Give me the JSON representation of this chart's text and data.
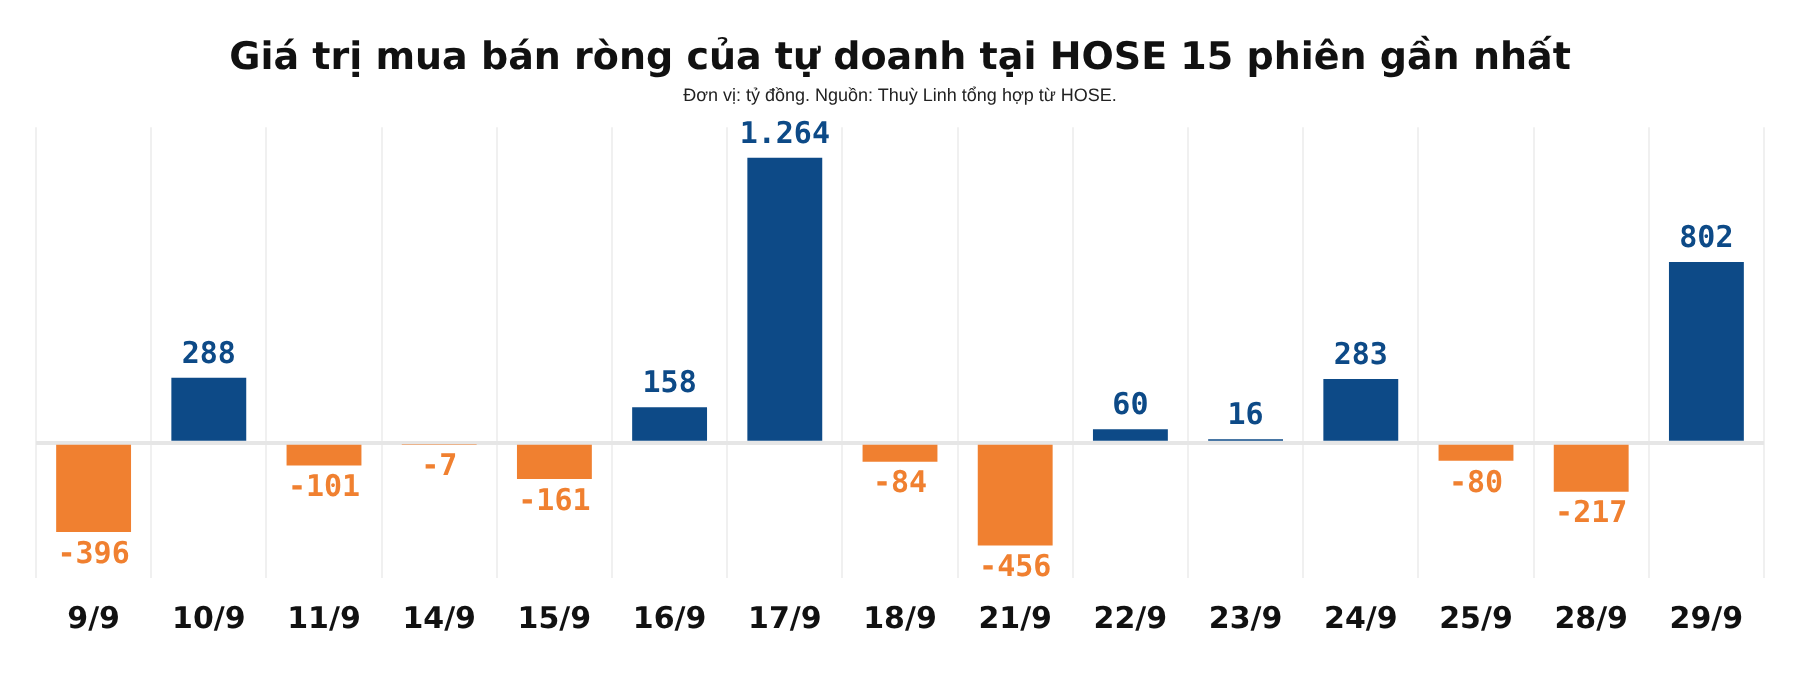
{
  "chart_data": {
    "type": "bar",
    "title": "Giá trị mua bán ròng của tự doanh tại HOSE 15 phiên gần nhất",
    "subtitle": "Đơn vị: tỷ đồng. Nguồn: Thuỳ Linh tổng hợp từ HOSE.",
    "categories": [
      "9/9",
      "10/9",
      "11/9",
      "14/9",
      "15/9",
      "16/9",
      "17/9",
      "18/9",
      "21/9",
      "22/9",
      "23/9",
      "24/9",
      "25/9",
      "28/9",
      "29/9"
    ],
    "values": [
      -396,
      288,
      -101,
      -7,
      -161,
      158,
      1264,
      -84,
      -456,
      60,
      16,
      283,
      -80,
      -217,
      802
    ],
    "colors": [
      "#f08030",
      "#0d4a87",
      "#f08030",
      "#f08030",
      "#f08030",
      "#0d4a87",
      "#0d4a87",
      "#f08030",
      "#f08030",
      "#0d4a87",
      "#0d4a87",
      "#0d4a87",
      "#f08030",
      "#f08030",
      "#0d4a87"
    ],
    "value_labels": [
      "-396",
      "288",
      "-101",
      "-7",
      "-161",
      "158",
      "1.264",
      "-84",
      "-456",
      "60",
      "16",
      "283",
      "-80",
      "-217",
      "802"
    ],
    "grid": "x",
    "legend": false
  }
}
